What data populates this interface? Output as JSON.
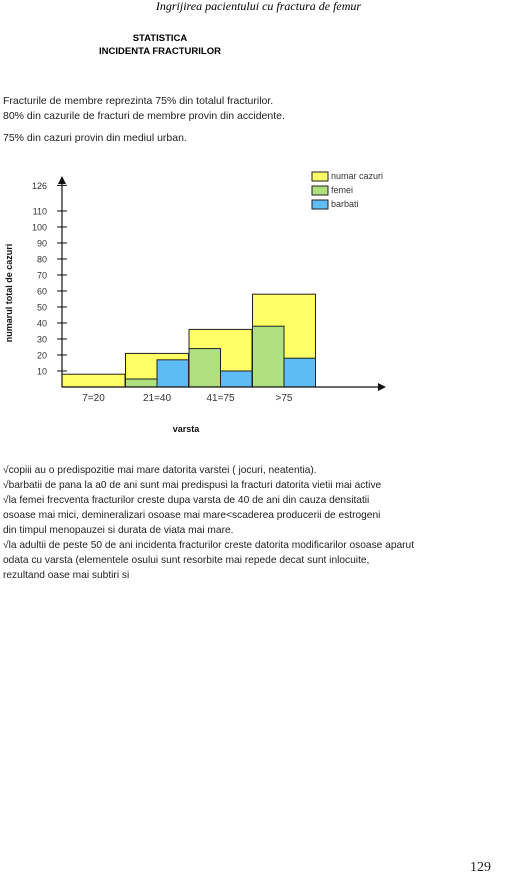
{
  "header": {
    "running_title": "Ingrijirea pacientului cu fractura de femur"
  },
  "title": {
    "line1": "STATISTICA",
    "line2": "INCIDENTA FRACTURILOR"
  },
  "intro": {
    "lines": [
      "Fracturile de membre reprezinta 75% din totalul fracturilor.",
      "80% din cazurile de fracturi de membre provin din accidente.",
      "75% din cazuri provin din mediul urban."
    ]
  },
  "chart_data": {
    "type": "bar",
    "title": "",
    "xlabel": "varsta",
    "ylabel": "numarul total de cazuri",
    "categories": [
      "7=20",
      "21=40",
      "41=75",
      ">75"
    ],
    "series": [
      {
        "name": "numar cazuri",
        "color": "#ffff66",
        "values": [
          8,
          21,
          36,
          58
        ]
      },
      {
        "name": "femei",
        "color": "#aee07e",
        "values": [
          0,
          5,
          24,
          38
        ]
      },
      {
        "name": "barbati",
        "color": "#5ebcf5",
        "values": [
          0,
          17,
          10,
          18
        ]
      }
    ],
    "yticks": [
      10,
      20,
      30,
      40,
      50,
      60,
      70,
      80,
      90,
      100,
      110,
      126
    ],
    "ylim": [
      0,
      126
    ],
    "legend_position": "top-right",
    "grid": false
  },
  "notes": {
    "lines": [
      "√copiii au o predispozitie mai mare datorita varstei ( jocuri, neatentia).",
      "√barbatii de pana la a0 de ani sunt mai predispusi  la fracturi datorita vietii mai active",
      "√la femei frecventa fracturilor creste dupa varsta de 40 de ani din cauza densitatii",
      "osoase mai mici, demineralizari osoase mai mare<scaderea producerii de estrogeni",
      "din timpul menopauzei si durata de viata mai mare.",
      "√la adultii de peste 50 de ani incidenta fracturilor creste datorita modificarilor osoase aparut",
      "odata cu varsta (elementele osului sunt resorbite mai repede decat sunt inlocuite,",
      "rezultand oase mai subtiri si"
    ]
  },
  "footer": {
    "page_number": "129"
  }
}
